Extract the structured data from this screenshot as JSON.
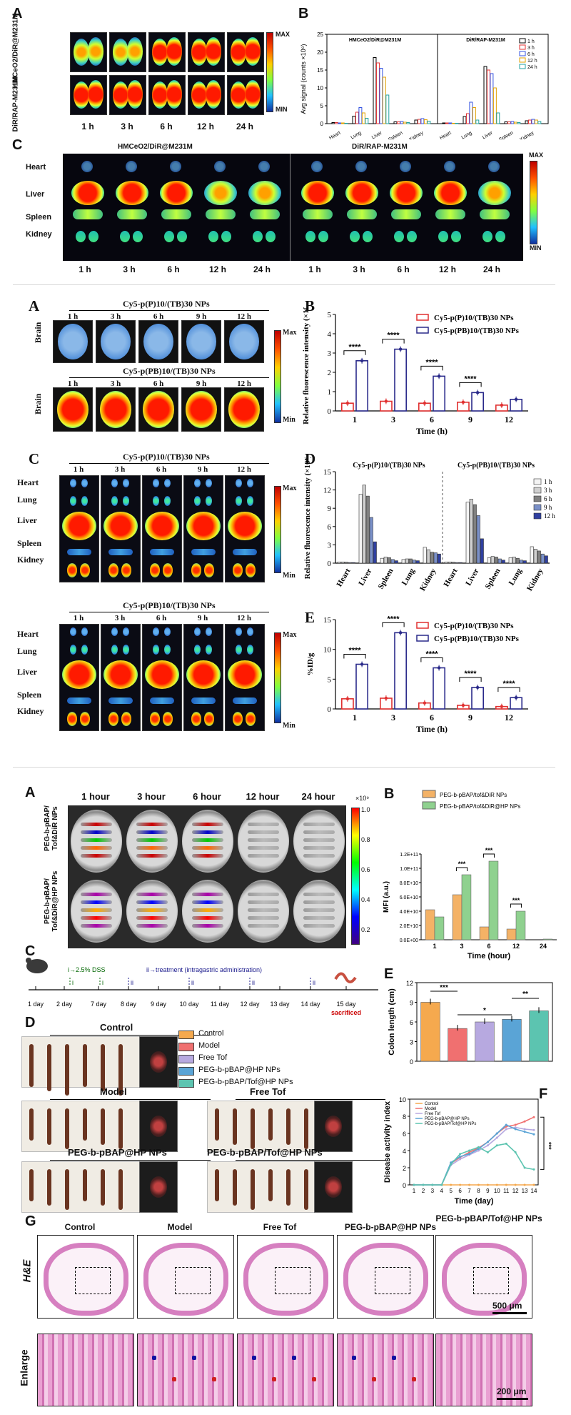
{
  "section1": {
    "panelA_label": "A",
    "panelB_label": "B",
    "panelC_label": "C",
    "rowLabels": [
      "HMCeO2/DiR@M231M",
      "DiR/RAP-M231M"
    ],
    "timepoints": [
      "1 h",
      "3 h",
      "6 h",
      "12 h",
      "24 h"
    ],
    "colorbar": {
      "max": "MAX",
      "min": "MIN"
    },
    "groupTitles": [
      "HMCeO2/DiR@M231M",
      "DiR/RAP-M231M"
    ],
    "organs": [
      "Heart",
      "Liver",
      "Spleen",
      "Kidney"
    ]
  },
  "section2": {
    "panelA_label": "A",
    "panelB_label": "B",
    "panelC_label": "C",
    "panelD_label": "D",
    "panelE_label": "E",
    "groupA": "Cy5-p(P)10/(TB)30 NPs",
    "groupB": "Cy5-p(PB)10/(TB)30 NPs",
    "timepoints": [
      "1 h",
      "3 h",
      "6 h",
      "9 h",
      "12 h"
    ],
    "brain_label": "Brain",
    "organs": [
      "Heart",
      "Lung",
      "Liver",
      "Spleen",
      "Kidney"
    ],
    "colorbar": {
      "max": "Max",
      "min": "Min"
    }
  },
  "section3": {
    "panelA_label": "A",
    "panelB_label": "B",
    "panelC_label": "C",
    "panelD_label": "D",
    "panelE_label": "E",
    "panelF_label": "F",
    "panelG_label": "G",
    "hours": [
      "1 hour",
      "3 hour",
      "6 hour",
      "12 hour",
      "24 hour"
    ],
    "rowLabels": [
      "PEG-b-pBAP/ Tof&DiR NPs",
      "PEG-b-pBAP/ Tof&DiR@HP NPs"
    ],
    "colorbar_top": "×10⁹",
    "colorbar_ticks": [
      "1.0",
      "0.8",
      "0.6",
      "0.4",
      "0.2"
    ],
    "timeline": {
      "dss": "i→2.5% DSS",
      "treat": "ii→treatment (intragastric administration)",
      "days": [
        "1 day",
        "2 day",
        "7 day",
        "8 day",
        "9 day",
        "10 day",
        "11 day",
        "12 day",
        "13 day",
        "14 day",
        "15 day"
      ],
      "marks": [
        "i",
        "i",
        "ii",
        "ii",
        "ii",
        "ii"
      ],
      "sacrificed": "sacrificed"
    },
    "colonGroups": [
      "Control",
      "Model",
      "Free Tof",
      "PEG-b-pBAP@HP NPs",
      "PEG-b-pBAP/Tof@HP NPs"
    ],
    "legendD": [
      "Control",
      "Model",
      "Free Tof",
      "PEG-b-pBAP@HP NPs",
      "PEG-b-pBAP/Tof@HP NPs"
    ],
    "he_label": "H&E",
    "enlarge_label": "Enlarge",
    "scale1": "500 μm",
    "scale2": "200 μm"
  },
  "colors": {
    "red": "#e03030",
    "navy": "#2a2a8a",
    "orange": "#f4b266",
    "green": "#8fd18f",
    "ctrl": "#f5a94e",
    "model": "#f07070",
    "freetof": "#b7a9e0",
    "hp": "#5aa4d6",
    "tofhp": "#5cc4b0"
  },
  "chart_data": [
    {
      "id": "s1B",
      "type": "bar",
      "title": "",
      "ylabel": "Avg signal (counts ×10⁸)",
      "groupTitles": [
        "HMCeO2/DiR@M231M",
        "DiR/RAP-M231M"
      ],
      "categories": [
        "Heart",
        "Lung",
        "Liver",
        "Spleen",
        "Kidney"
      ],
      "legend": [
        "1 h",
        "3 h",
        "6 h",
        "12 h",
        "24 h"
      ],
      "legend_colors": [
        "#000000",
        "#e03030",
        "#3050e0",
        "#e0a000",
        "#20a0a0"
      ],
      "ylim": [
        0,
        25
      ],
      "yticks": [
        "0",
        "5",
        "10",
        "15",
        "20",
        "25"
      ],
      "groups": [
        {
          "name": "HMCeO2/DiR@M231M",
          "series": [
            [
              0.3,
              2.1,
              18.5,
              0.5,
              1.0
            ],
            [
              0.3,
              3.2,
              17.0,
              0.5,
              1.2
            ],
            [
              0.2,
              4.5,
              15.5,
              0.6,
              1.4
            ],
            [
              0.2,
              3.0,
              13.0,
              0.4,
              1.1
            ],
            [
              0.1,
              1.5,
              8.0,
              0.3,
              0.7
            ]
          ]
        },
        {
          "name": "DiR/RAP-M231M",
          "series": [
            [
              0.2,
              2.0,
              16.0,
              0.5,
              0.8
            ],
            [
              0.2,
              2.8,
              15.0,
              0.5,
              1.0
            ],
            [
              0.2,
              6.0,
              14.0,
              0.6,
              1.2
            ],
            [
              0.1,
              4.5,
              10.0,
              0.4,
              1.0
            ],
            [
              0.1,
              1.0,
              3.0,
              0.3,
              0.6
            ]
          ]
        }
      ]
    },
    {
      "id": "s2B",
      "type": "bar",
      "title": "",
      "xlabel": "Time (h)",
      "ylabel": "Relative fluorescence intensity (×10⁸)",
      "categories": [
        "1",
        "3",
        "6",
        "9",
        "12"
      ],
      "ylim": [
        0,
        5
      ],
      "yticks": [
        "0",
        "1",
        "2",
        "3",
        "4",
        "5"
      ],
      "series": [
        {
          "name": "Cy5-p(P)10/(TB)30 NPs",
          "values": [
            0.4,
            0.5,
            0.4,
            0.45,
            0.3
          ]
        },
        {
          "name": "Cy5-p(PB)10/(TB)30 NPs",
          "values": [
            2.6,
            3.2,
            1.8,
            0.95,
            0.6
          ]
        }
      ],
      "significance": [
        "****",
        "****",
        "****",
        "****"
      ]
    },
    {
      "id": "s2D",
      "type": "bar",
      "title": "",
      "ylabel": "Relative fluorescence intensity (×10⁸)",
      "categories": [
        "Heart",
        "Liver",
        "Spleen",
        "Lung",
        "Kidney"
      ],
      "legend": [
        "1 h",
        "3 h",
        "6 h",
        "9 h",
        "12 h"
      ],
      "ylim": [
        0,
        15
      ],
      "yticks": [
        "0",
        "3",
        "6",
        "9",
        "12",
        "15"
      ],
      "groups": [
        {
          "name": "Cy5-p(P)10/(TB)30 NPs",
          "series": [
            [
              0.2,
              11.3,
              0.8,
              0.6,
              2.6
            ],
            [
              0.2,
              12.8,
              1.0,
              0.7,
              2.2
            ],
            [
              0.15,
              11.0,
              0.9,
              0.7,
              1.8
            ],
            [
              0.1,
              7.5,
              0.6,
              0.5,
              1.7
            ],
            [
              0.1,
              3.5,
              0.4,
              0.4,
              1.5
            ]
          ]
        },
        {
          "name": "Cy5-p(PB)10/(TB)30 NPs",
          "series": [
            [
              0.2,
              10.0,
              0.9,
              0.9,
              2.7
            ],
            [
              0.2,
              10.5,
              1.1,
              1.0,
              2.3
            ],
            [
              0.15,
              9.6,
              1.0,
              0.8,
              2.0
            ],
            [
              0.1,
              7.8,
              0.7,
              0.5,
              1.5
            ],
            [
              0.1,
              4.0,
              0.5,
              0.4,
              1.2
            ]
          ]
        }
      ]
    },
    {
      "id": "s2E",
      "type": "bar",
      "title": "",
      "xlabel": "Time (h)",
      "ylabel": "%ID/g",
      "categories": [
        "1",
        "3",
        "6",
        "9",
        "12"
      ],
      "ylim": [
        0,
        15
      ],
      "yticks": [
        "0",
        "5",
        "10",
        "15"
      ],
      "series": [
        {
          "name": "Cy5-p(P)10/(TB)30 NPs",
          "values": [
            1.7,
            1.8,
            1.0,
            0.6,
            0.4
          ]
        },
        {
          "name": "Cy5-p(PB)10/(TB)30 NPs",
          "values": [
            7.5,
            12.8,
            6.9,
            3.6,
            1.9
          ]
        }
      ],
      "significance": [
        "****",
        "****",
        "****",
        "****",
        "****"
      ]
    },
    {
      "id": "s3B",
      "type": "bar",
      "title": "",
      "xlabel": "Time (hour)",
      "ylabel": "MFI (a.u.)",
      "categories": [
        "1",
        "3",
        "6",
        "12",
        "24"
      ],
      "ylim": [
        0,
        120000000000.0
      ],
      "yticks": [
        "0.0E+00",
        "2.0E+10",
        "4.0E+10",
        "6.0E+10",
        "8.0E+10",
        "1.0E+11",
        "1.2E+11"
      ],
      "series": [
        {
          "name": "PEG-b-pBAP/tof&DiR NPs",
          "values": [
            42000000000.0,
            63000000000.0,
            18000000000.0,
            15000000000.0,
            0
          ]
        },
        {
          "name": "PEG-b-pBAP/tof&DiR@HP NPs",
          "values": [
            32000000000.0,
            91000000000.0,
            110000000000.0,
            40000000000.0,
            1000000000.0
          ]
        }
      ],
      "significance": [
        "***",
        "***",
        "***"
      ]
    },
    {
      "id": "s3E",
      "type": "bar",
      "title": "",
      "ylabel": "Colon length (cm)",
      "categories": [
        "Control",
        "Model",
        "Free Tof",
        "PEG-b-pBAP@HP NPs",
        "PEG-b-pBAP/Tof@HP NPs"
      ],
      "values": [
        9.0,
        5.0,
        6.0,
        6.4,
        7.7
      ],
      "ylim": [
        0,
        12
      ],
      "yticks": [
        "0",
        "3",
        "6",
        "9",
        "12"
      ],
      "significance": [
        "***",
        "*",
        "**"
      ]
    },
    {
      "id": "s3F",
      "type": "line",
      "title": "",
      "xlabel": "Time (day)",
      "ylabel": "Disease activity index",
      "x": [
        1,
        2,
        3,
        4,
        5,
        6,
        7,
        8,
        9,
        10,
        11,
        12,
        13,
        14
      ],
      "xticks": [
        "1",
        "2",
        "3",
        "4",
        "5",
        "6",
        "7",
        "8",
        "9",
        "10",
        "11",
        "12",
        "13",
        "14"
      ],
      "ylim": [
        0,
        10
      ],
      "yticks": [
        "0",
        "2",
        "4",
        "6",
        "8",
        "10"
      ],
      "series": [
        {
          "name": "Control",
          "values": [
            0,
            0,
            0,
            0,
            0,
            0,
            0,
            0,
            0,
            0,
            0,
            0,
            0,
            0
          ]
        },
        {
          "name": "Model",
          "values": [
            0,
            0,
            0,
            0,
            2.5,
            3.2,
            3.8,
            4.3,
            5.0,
            6.0,
            6.8,
            7.0,
            7.4,
            7.9
          ]
        },
        {
          "name": "Free Tof",
          "values": [
            0,
            0,
            0,
            0,
            2.3,
            3.0,
            3.5,
            4.0,
            4.6,
            5.5,
            6.5,
            6.7,
            6.5,
            6.4
          ]
        },
        {
          "name": "PEG-b-pBAP@HP NPs",
          "values": [
            0,
            0,
            0,
            0,
            2.6,
            3.3,
            3.6,
            4.2,
            5.0,
            6.0,
            7.0,
            6.5,
            6.2,
            5.9
          ]
        },
        {
          "name": "PEG-b-pBAP/Tof@HP NPs",
          "values": [
            0,
            0,
            0,
            0,
            2.4,
            3.6,
            4.0,
            4.4,
            3.8,
            4.6,
            4.8,
            3.8,
            2.0,
            1.8
          ]
        }
      ],
      "significance": "***"
    }
  ]
}
